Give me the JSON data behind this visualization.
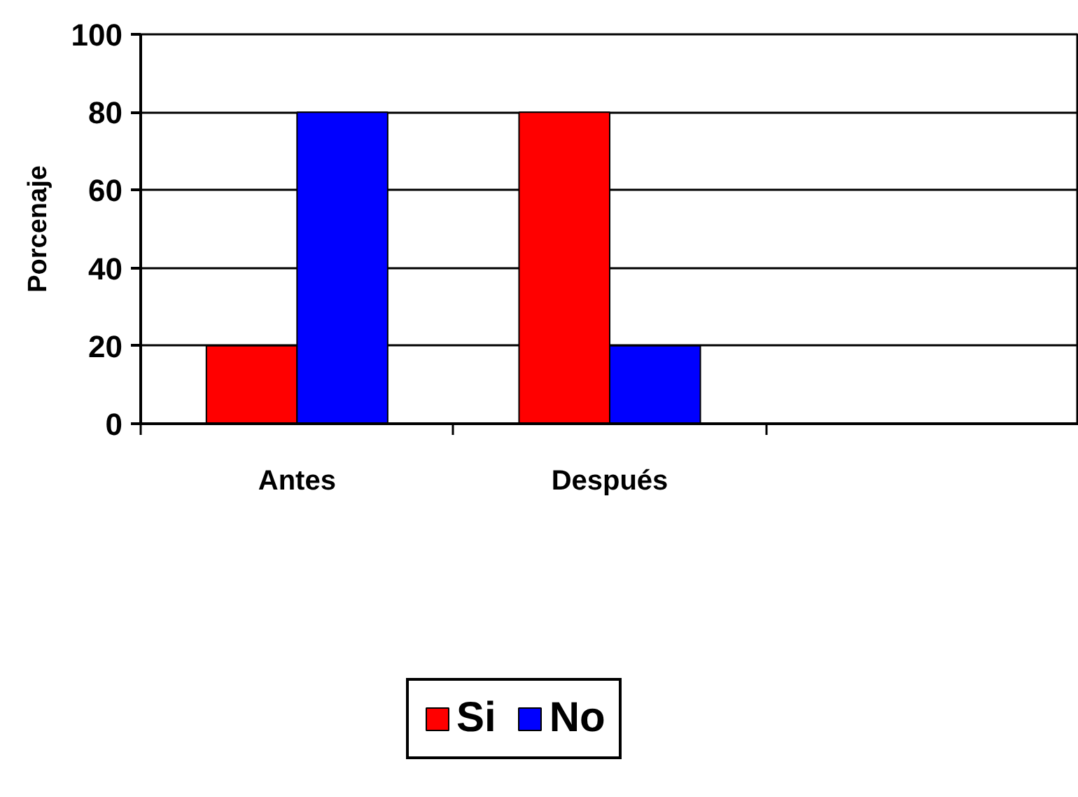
{
  "chart_data": {
    "type": "bar",
    "ylabel": "Porcenaje",
    "categories": [
      "Antes",
      "Después",
      null
    ],
    "series": [
      {
        "name": "Si",
        "color": "#ff0000",
        "values": [
          20,
          80,
          null
        ]
      },
      {
        "name": "No",
        "color": "#0000ff",
        "values": [
          80,
          20,
          null
        ]
      }
    ],
    "ylim": [
      0,
      100
    ],
    "yticks": [
      0,
      20,
      40,
      60,
      80,
      100
    ],
    "grid": "y",
    "legend": "bottom"
  }
}
